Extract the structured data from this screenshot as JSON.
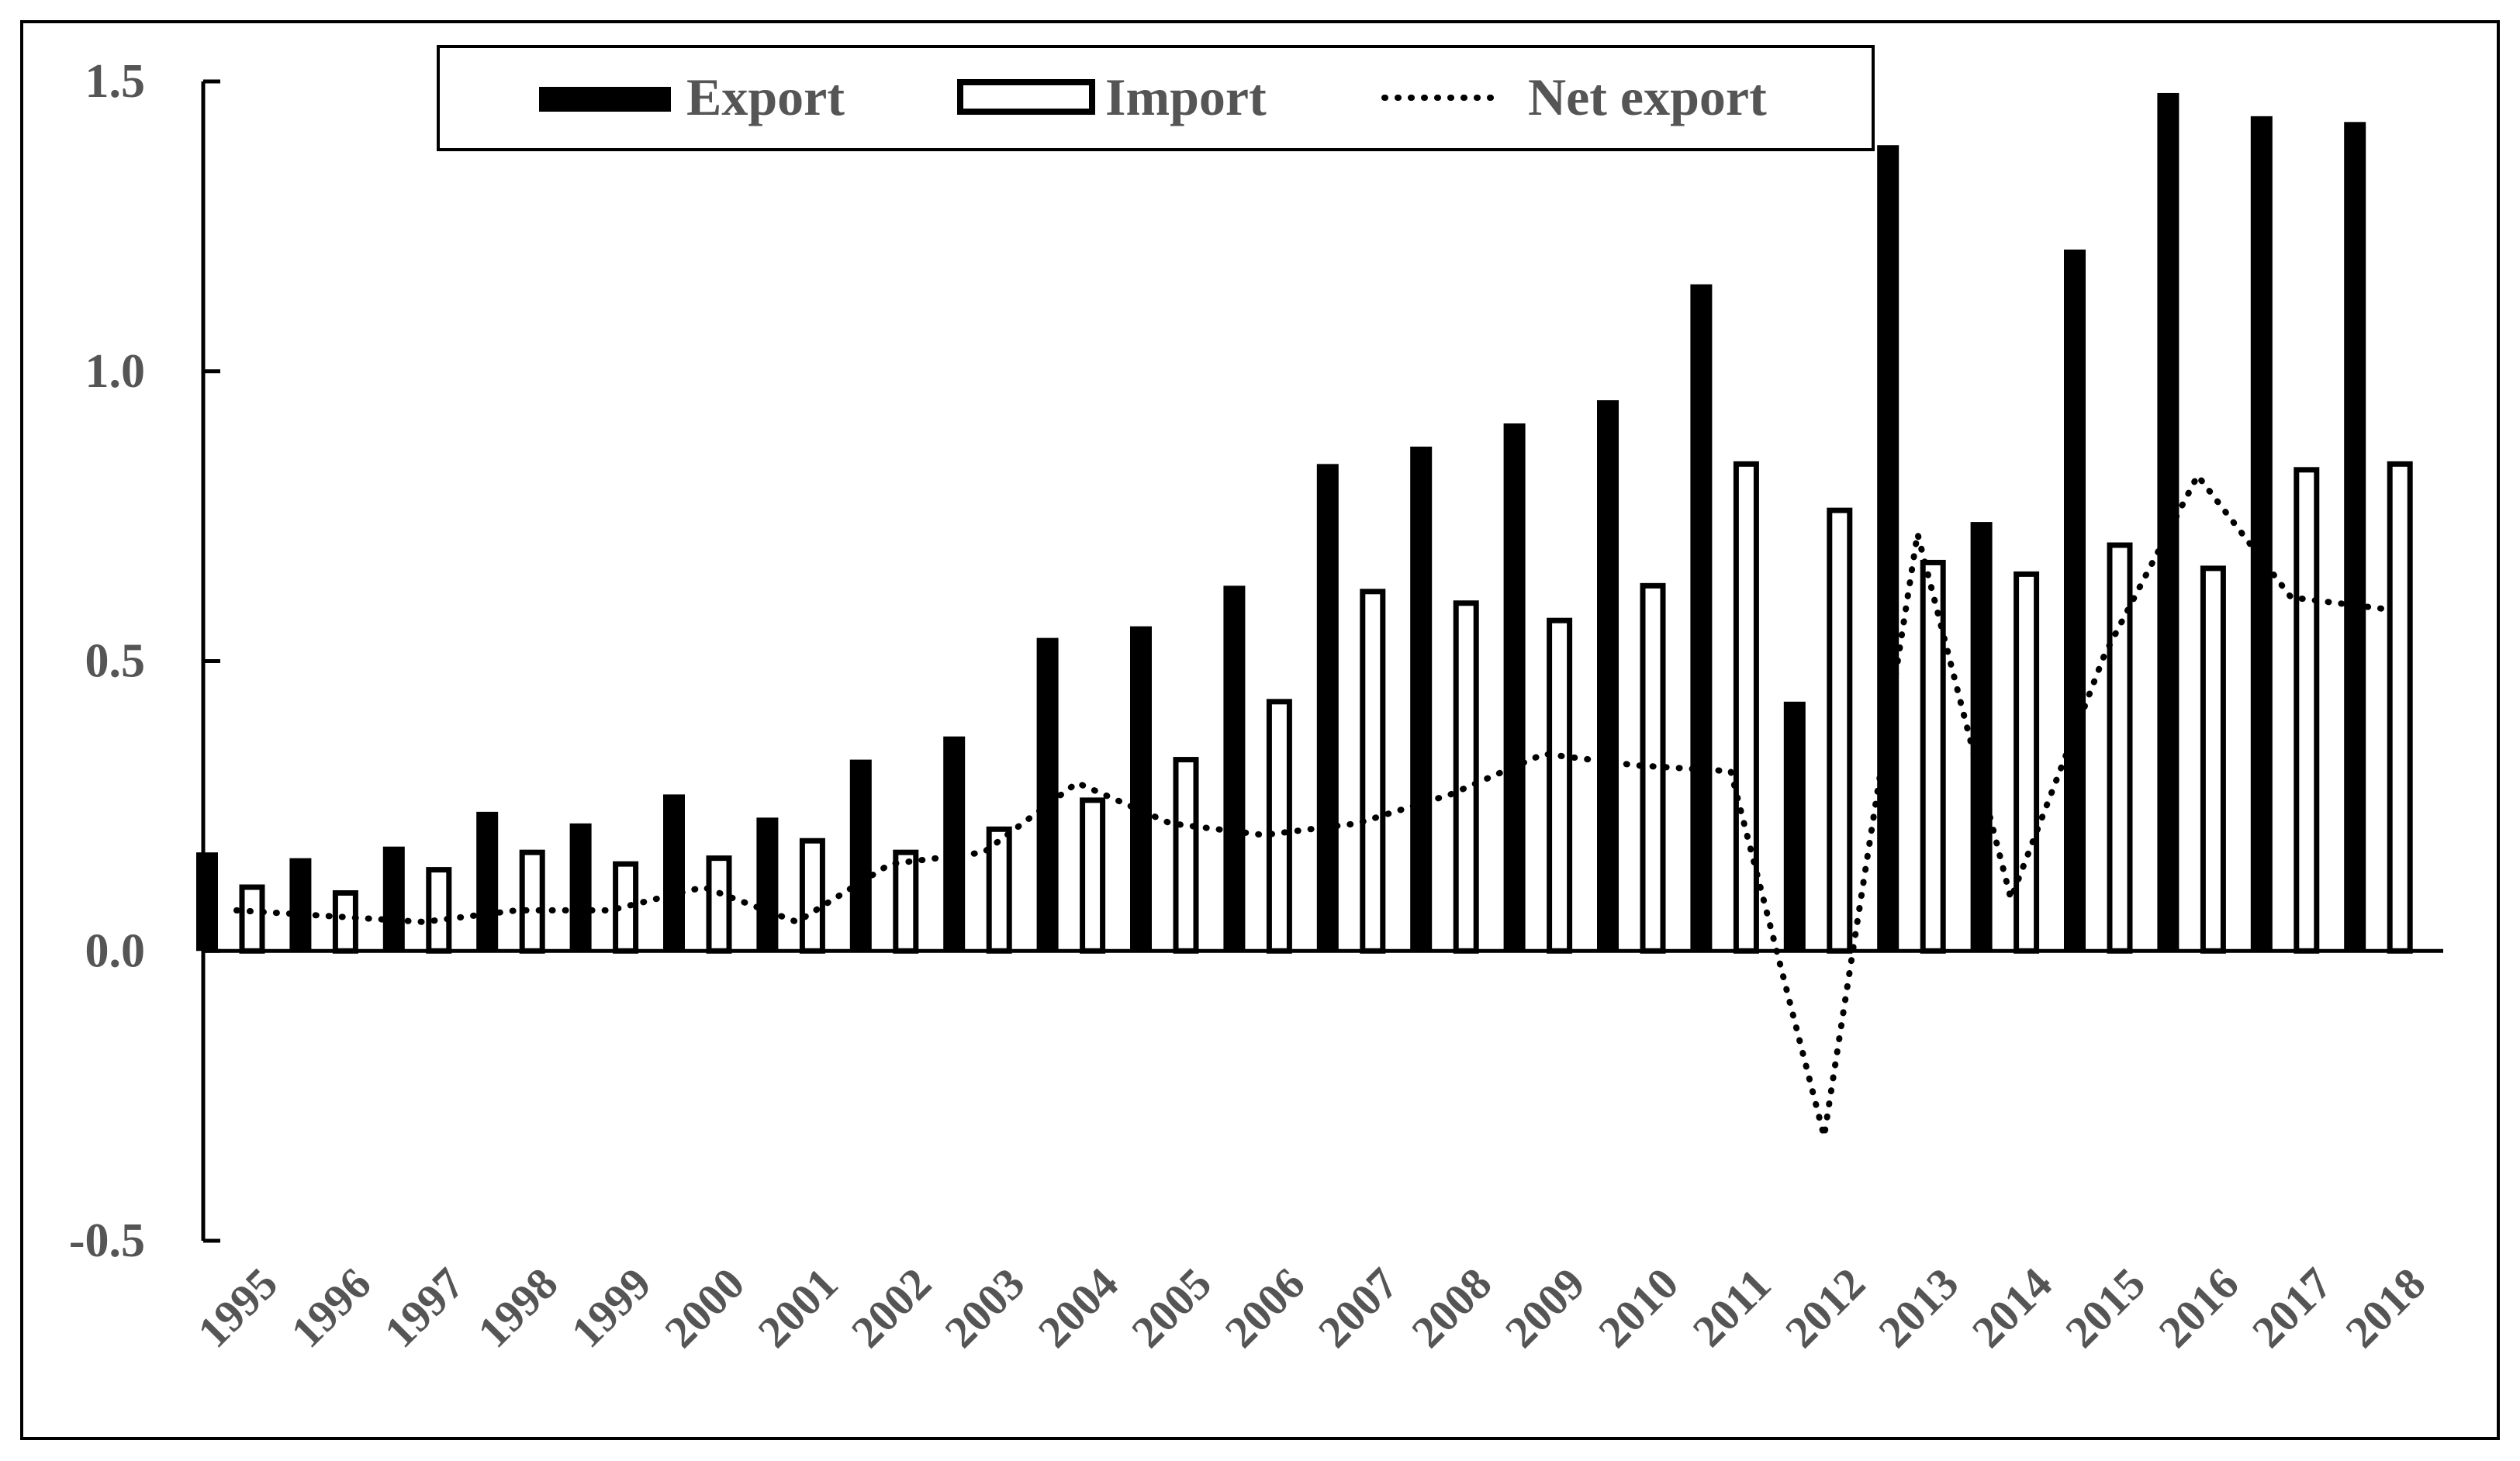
{
  "chart_data": {
    "type": "bar",
    "title": "",
    "xlabel": "",
    "ylabel": "",
    "ylim": [
      -0.5,
      1.5
    ],
    "yticks": [
      -0.5,
      0.0,
      0.5,
      1.0,
      1.5
    ],
    "ytick_labels": [
      "-0.5",
      "0.0",
      "0.5",
      "1.0",
      "1.5"
    ],
    "grid": false,
    "legend_position": "top",
    "categories": [
      "1995",
      "1996",
      "1997",
      "1998",
      "1999",
      "2000",
      "2001",
      "2002",
      "2003",
      "2004",
      "2005",
      "2006",
      "2007",
      "2008",
      "2009",
      "2010",
      "2011",
      "2012",
      "2013",
      "2014",
      "2015",
      "2016",
      "2017",
      "2018"
    ],
    "series": [
      {
        "name": "Export",
        "kind": "bar",
        "style": "solid",
        "color": "#000000",
        "values": [
          0.17,
          0.16,
          0.18,
          0.24,
          0.22,
          0.27,
          0.23,
          0.33,
          0.37,
          0.54,
          0.56,
          0.63,
          0.84,
          0.87,
          0.91,
          0.95,
          1.15,
          0.43,
          1.39,
          0.74,
          1.21,
          1.48,
          1.44,
          1.43
        ]
      },
      {
        "name": "Import",
        "kind": "bar",
        "style": "outline",
        "color": "#000000",
        "values": [
          0.11,
          0.1,
          0.14,
          0.17,
          0.15,
          0.16,
          0.19,
          0.17,
          0.21,
          0.26,
          0.33,
          0.43,
          0.62,
          0.6,
          0.57,
          0.63,
          0.84,
          0.76,
          0.67,
          0.65,
          0.7,
          0.66,
          0.83,
          0.84
        ]
      },
      {
        "name": "Net export",
        "kind": "line",
        "style": "dotted",
        "color": "#000000",
        "values": [
          0.07,
          0.06,
          0.05,
          0.07,
          0.07,
          0.11,
          0.05,
          0.15,
          0.17,
          0.29,
          0.22,
          0.2,
          0.22,
          0.27,
          0.34,
          0.32,
          0.31,
          -0.32,
          0.72,
          0.09,
          0.51,
          0.82,
          0.61,
          0.59
        ]
      }
    ]
  }
}
